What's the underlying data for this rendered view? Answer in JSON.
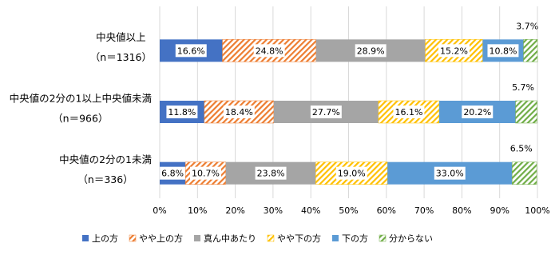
{
  "chart_data": {
    "type": "stacked-barh",
    "categories": [
      [
        "中央値以上",
        "（n＝1316）"
      ],
      [
        "中央値の2分の1以上中央値未満",
        "（n＝966）"
      ],
      [
        "中央値の2分の1未満",
        "（n＝336）"
      ]
    ],
    "series": [
      {
        "name": "上の方",
        "color": "#4472c4",
        "pattern": "solid",
        "values": [
          16.6,
          11.8,
          6.8
        ],
        "value_labels": [
          "16.6%",
          "11.8%",
          "6.8%"
        ]
      },
      {
        "name": "やや上の方",
        "color": "#ed7d31",
        "pattern": "hatch",
        "values": [
          24.8,
          18.4,
          10.7
        ],
        "value_labels": [
          "24.8%",
          "18.4%",
          "10.7%"
        ]
      },
      {
        "name": "真ん中あたり",
        "color": "#a5a5a5",
        "pattern": "solid",
        "values": [
          28.9,
          27.7,
          23.8
        ],
        "value_labels": [
          "28.9%",
          "27.7%",
          "23.8%"
        ]
      },
      {
        "name": "やや下の方",
        "color": "#ffc000",
        "pattern": "hatch",
        "values": [
          15.2,
          16.1,
          19.0
        ],
        "value_labels": [
          "15.2%",
          "16.1%",
          "19.0%"
        ]
      },
      {
        "name": "下の方",
        "color": "#5b9bd5",
        "pattern": "solid",
        "values": [
          10.8,
          20.2,
          33.0
        ],
        "value_labels": [
          "10.8%",
          "20.2%",
          "33.0%"
        ]
      },
      {
        "name": "分からない",
        "color": "#70ad47",
        "pattern": "hatch",
        "values": [
          3.7,
          5.7,
          6.5
        ],
        "value_labels": [
          "3.7%",
          "5.7%",
          "6.5%"
        ]
      }
    ],
    "xlim": [
      0,
      100
    ],
    "xticks": [
      {
        "value": 0,
        "label": "0%"
      },
      {
        "value": 10,
        "label": "10%"
      },
      {
        "value": 20,
        "label": "20%"
      },
      {
        "value": 30,
        "label": "30%"
      },
      {
        "value": 40,
        "label": "40%"
      },
      {
        "value": 50,
        "label": "50%"
      },
      {
        "value": 60,
        "label": "60%"
      },
      {
        "value": 70,
        "label": "70%"
      },
      {
        "value": 80,
        "label": "80%"
      },
      {
        "value": 90,
        "label": "90%"
      },
      {
        "value": 100,
        "label": "100%"
      }
    ],
    "grid": true,
    "legend": "bottom"
  }
}
